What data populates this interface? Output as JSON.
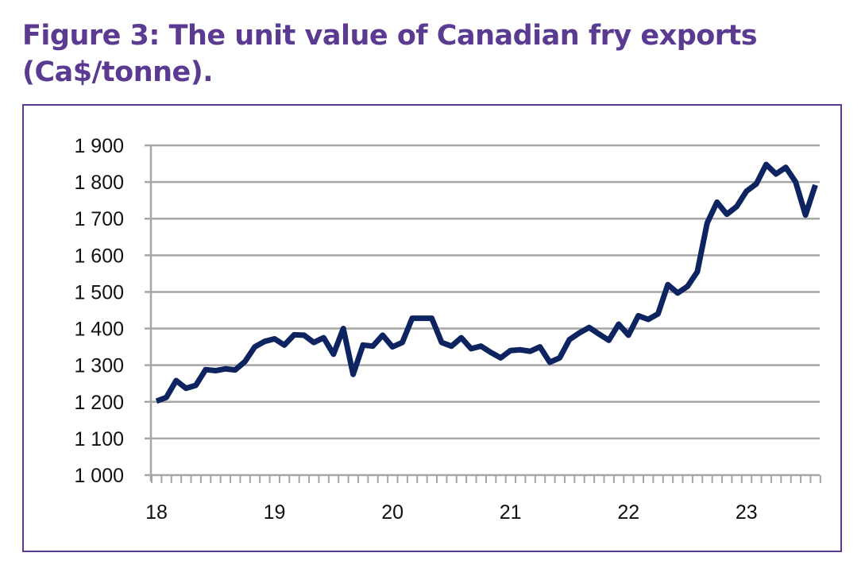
{
  "chart_data": {
    "type": "line",
    "title": "Figure 3: The unit value of Canadian fry exports (Ca$/tonne).",
    "xlabel": "",
    "ylabel": "",
    "ylim": [
      1000,
      1900
    ],
    "yticks": [
      1000,
      1100,
      1200,
      1300,
      1400,
      1500,
      1600,
      1700,
      1800,
      1900
    ],
    "ytick_labels": [
      "1 000",
      "1 100",
      "1 200",
      "1 300",
      "1 400",
      "1 500",
      "1 600",
      "1 700",
      "1 800",
      "1 900"
    ],
    "xtick_labels": [
      "18",
      "19",
      "20",
      "21",
      "22",
      "23"
    ],
    "x_start": "2018-01",
    "frequency": "monthly",
    "grid": true,
    "line_color": "#0d2461",
    "series": [
      {
        "name": "Unit value (Ca$/tonne)",
        "values": [
          1202,
          1212,
          1258,
          1237,
          1245,
          1288,
          1285,
          1290,
          1287,
          1310,
          1350,
          1365,
          1372,
          1355,
          1383,
          1382,
          1362,
          1375,
          1330,
          1400,
          1275,
          1355,
          1352,
          1382,
          1350,
          1362,
          1428,
          1428,
          1428,
          1362,
          1352,
          1375,
          1345,
          1352,
          1335,
          1320,
          1340,
          1342,
          1338,
          1350,
          1308,
          1320,
          1370,
          1388,
          1403,
          1385,
          1368,
          1412,
          1382,
          1435,
          1425,
          1440,
          1520,
          1497,
          1515,
          1555,
          1688,
          1745,
          1712,
          1733,
          1775,
          1795,
          1848,
          1822,
          1840,
          1800,
          1710,
          1792
        ]
      }
    ]
  }
}
